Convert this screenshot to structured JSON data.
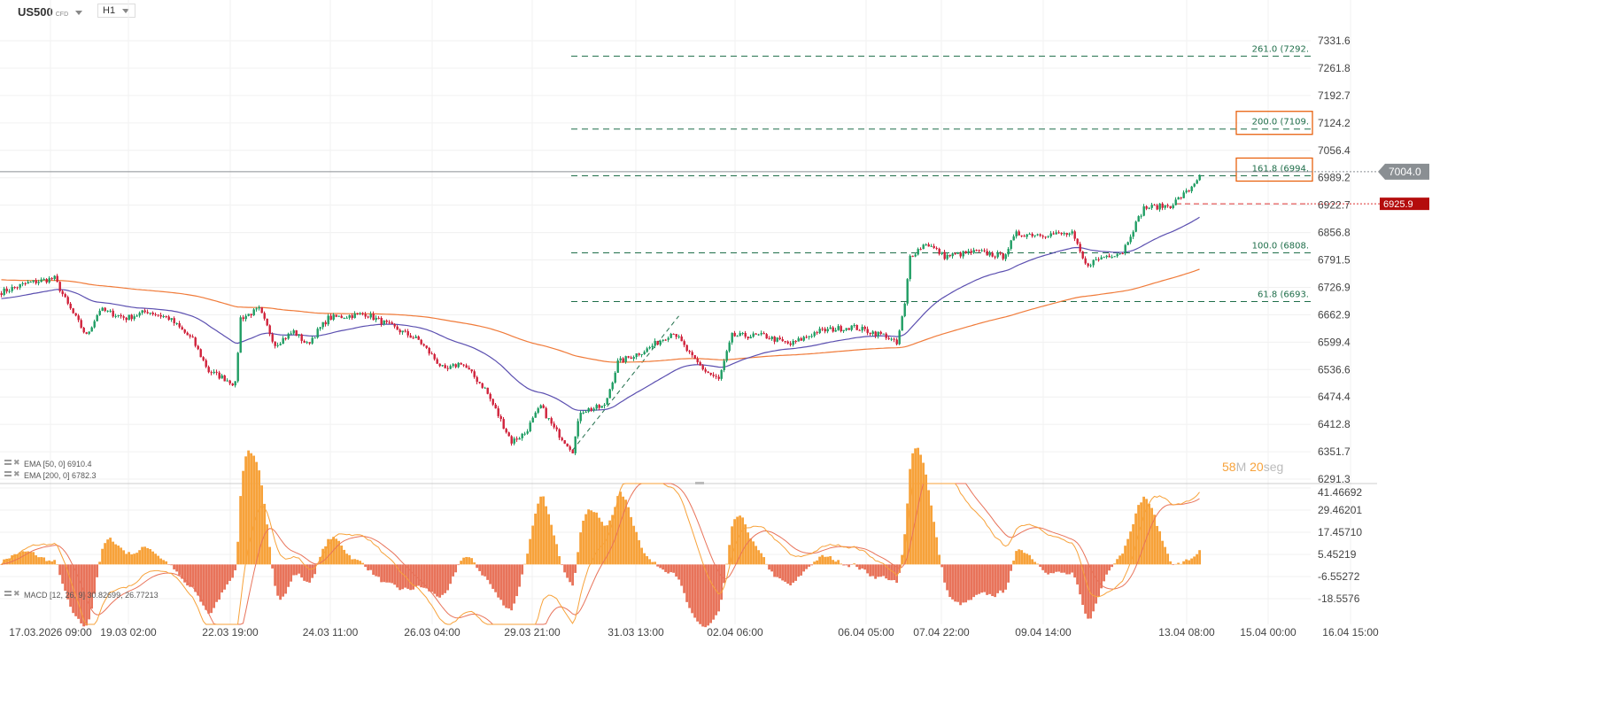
{
  "header": {
    "symbol": "US500",
    "instrument_type": "CFD",
    "timeframe": "H1"
  },
  "countdown": {
    "minutes": "58",
    "minutes_unit": "M",
    "seconds": "20",
    "seconds_unit": "seg"
  },
  "colors": {
    "up": "#1f9d63",
    "down": "#d0213a",
    "ema50": "#5b4fb0",
    "ema200": "#f07b3a",
    "fib": "#1f6e4a",
    "macd": "#f7a23a",
    "signal": "#e8735a",
    "hist_pos": "#f7a23a",
    "hist_neg": "#e8735a",
    "last_price_tag": "#8a8f93",
    "alert_tag": "#b40c0c",
    "highlight_box": "#e8620f"
  },
  "chart_data": [
    {
      "type": "candlestick",
      "scale": "log",
      "ylim": [
        6291.3,
        7331.6
      ],
      "y_ticks": [
        "7331.6",
        "7261.8",
        "7192.7",
        "7124.2",
        "7056.4",
        "6989.2",
        "6922.7",
        "6856.8",
        "6791.5",
        "6726.9",
        "6662.9",
        "6599.4",
        "6536.6",
        "6474.4",
        "6412.8",
        "6351.7",
        "6291.3"
      ],
      "x_ticks": [
        "17.03.2026 09:00",
        "19.03 02:00",
        "22.03 19:00",
        "24.03 11:00",
        "26.03 04:00",
        "29.03 21:00",
        "31.03 13:00",
        "02.04 06:00",
        "06.04 05:00",
        "07.04 22:00",
        "09.04 14:00",
        "13.04 08:00",
        "15.04 00:00",
        "16.04 15:00"
      ],
      "grid": true,
      "approx_close_path": [
        [
          0,
          6716
        ],
        [
          10,
          6737
        ],
        [
          20,
          6748
        ],
        [
          25,
          6686
        ],
        [
          32,
          6614
        ],
        [
          37,
          6675
        ],
        [
          47,
          6655
        ],
        [
          55,
          6671
        ],
        [
          63,
          6655
        ],
        [
          72,
          6604
        ],
        [
          78,
          6533
        ],
        [
          85,
          6513
        ],
        [
          88,
          6503
        ],
        [
          90,
          6655
        ],
        [
          97,
          6675
        ],
        [
          103,
          6594
        ],
        [
          110,
          6624
        ],
        [
          115,
          6594
        ],
        [
          123,
          6655
        ],
        [
          137,
          6665
        ],
        [
          147,
          6635
        ],
        [
          157,
          6604
        ],
        [
          167,
          6533
        ],
        [
          173,
          6553
        ],
        [
          182,
          6493
        ],
        [
          187,
          6433
        ],
        [
          192,
          6374
        ],
        [
          197,
          6393
        ],
        [
          203,
          6453
        ],
        [
          208,
          6403
        ],
        [
          215,
          6355
        ],
        [
          218,
          6443
        ],
        [
          227,
          6453
        ],
        [
          232,
          6553
        ],
        [
          243,
          6583
        ],
        [
          253,
          6624
        ],
        [
          260,
          6563
        ],
        [
          265,
          6533
        ],
        [
          270,
          6513
        ],
        [
          275,
          6614
        ],
        [
          287,
          6614
        ],
        [
          297,
          6594
        ],
        [
          307,
          6624
        ],
        [
          320,
          6635
        ],
        [
          333,
          6614
        ],
        [
          337,
          6594
        ],
        [
          340,
          6686
        ],
        [
          342,
          6800
        ],
        [
          348,
          6832
        ],
        [
          355,
          6800
        ],
        [
          367,
          6811
        ],
        [
          377,
          6800
        ],
        [
          382,
          6853
        ],
        [
          393,
          6853
        ],
        [
          403,
          6853
        ],
        [
          408,
          6779
        ],
        [
          415,
          6800
        ],
        [
          422,
          6811
        ],
        [
          425,
          6853
        ],
        [
          430,
          6916
        ],
        [
          440,
          6922
        ],
        [
          447,
          6959
        ],
        [
          451,
          6996
        ]
      ],
      "last_price": "7004.0",
      "alert_level": {
        "label": "6925.9",
        "value": 6925.9
      },
      "indicators": [
        {
          "legend": "EMA [50, 0] 6910.4",
          "period": 50,
          "value": 6910.4
        },
        {
          "legend": "EMA [200, 0] 6782.3",
          "period": 200,
          "value": 6782.3
        }
      ],
      "fibonacci": [
        {
          "label": "261.0 (7292.",
          "value": 7292.3
        },
        {
          "label": "200.0 (7109.",
          "value": 7109.0,
          "highlighted": true
        },
        {
          "label": "161.8 (6994.",
          "value": 6994.0,
          "highlighted": true
        },
        {
          "label": "100.0 (6808.",
          "value": 6808.4
        },
        {
          "label": "61.8 (6693.",
          "value": 6693.6
        }
      ],
      "trendline": {
        "from": [
          215,
          6355
        ],
        "to": [
          255,
          6660
        ]
      }
    },
    {
      "type": "macd",
      "legend": "MACD [12, 26, 9] 30.82699, 26.77213",
      "params": [
        12,
        26,
        9
      ],
      "macd": 30.82699,
      "signal": 26.77213,
      "ylim": [
        -18.5576,
        41.46692
      ],
      "y_ticks": [
        "41.46692",
        "29.46201",
        "17.45710",
        "5.45219",
        "-6.55272",
        "-18.5576"
      ]
    }
  ]
}
